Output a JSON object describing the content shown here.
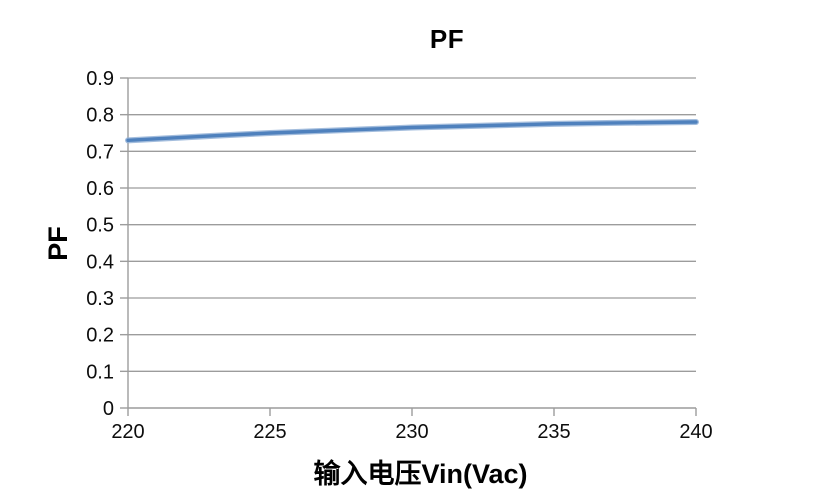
{
  "chart_data": {
    "type": "line",
    "title": "PF",
    "xlabel": "输入电压Vin(Vac)",
    "ylabel": "PF",
    "x": [
      220,
      225,
      230,
      235,
      240
    ],
    "series": [
      {
        "name": "PF",
        "values": [
          0.73,
          0.75,
          0.765,
          0.775,
          0.78
        ],
        "color": "#4F81BD",
        "halo_color": "#93B1D7",
        "style": "smooth"
      }
    ],
    "xlim": [
      220,
      240
    ],
    "ylim": [
      0,
      0.9
    ],
    "xticks": [
      220,
      225,
      230,
      235,
      240
    ],
    "yticks": [
      0,
      0.1,
      0.2,
      0.3,
      0.4,
      0.5,
      0.6,
      0.7,
      0.8,
      0.9
    ],
    "grid": "horizontal",
    "legend": "none",
    "colors": {
      "gridline": "#9C9C9C",
      "axis": "#9C9C9C",
      "text": "#000000",
      "background": "#FFFFFF"
    }
  }
}
